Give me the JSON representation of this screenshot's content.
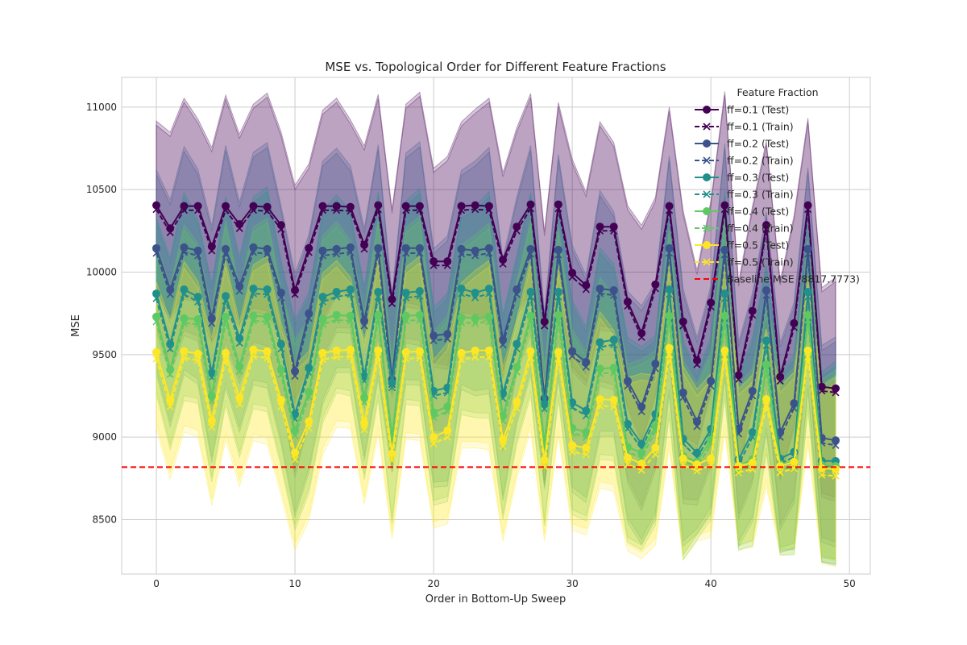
{
  "chart_data": {
    "type": "line",
    "title": "MSE vs. Topological Order for Different Feature Fractions",
    "xlabel": "Order in Bottom-Up Sweep",
    "ylabel": "MSE",
    "xlim": [
      -2.5,
      51.5
    ],
    "ylim": [
      8170,
      11180
    ],
    "x_ticks": [
      0,
      10,
      20,
      30,
      40,
      50
    ],
    "y_ticks": [
      8500,
      9000,
      9500,
      10000,
      10500,
      11000
    ],
    "grid": true,
    "legend": {
      "title": "Feature Fraction",
      "position": "top-right"
    },
    "baseline": {
      "label": "Baseline MSE (8817.7773)",
      "value": 8817.7773,
      "color": "#ff0000"
    },
    "series": [
      {
        "ff": "0.1",
        "color": "#440154",
        "test_label": "ff=0.1 (Test)",
        "train_label": "ff=0.1 (Train)",
        "test": [
          10405,
          10265,
          10400,
          10400,
          10155,
          10400,
          10290,
          10400,
          10395,
          10285,
          9890,
          10145,
          10400,
          10400,
          10395,
          10165,
          10405,
          9835,
          10400,
          10400,
          10065,
          10065,
          10400,
          10405,
          10400,
          10075,
          10275,
          10410,
          9700,
          10410,
          9995,
          9920,
          10275,
          10275,
          9820,
          9630,
          9925,
          10400,
          9700,
          9465,
          9815,
          10405,
          9375,
          9765,
          10285,
          9365,
          9690,
          10405,
          9305,
          9295
        ],
        "train_offset": -25,
        "band": 600
      },
      {
        "ff": "0.2",
        "color": "#3b528b",
        "test_label": "ff=0.2 (Test)",
        "train_label": "ff=0.2 (Train)",
        "test": [
          10145,
          9895,
          10150,
          10130,
          9720,
          10140,
          9915,
          10150,
          10140,
          9875,
          9400,
          9750,
          10130,
          10140,
          10150,
          9705,
          10145,
          9350,
          10145,
          10145,
          9615,
          9625,
          10140,
          10130,
          10145,
          9590,
          9895,
          10140,
          9235,
          10135,
          9520,
          9455,
          9900,
          9890,
          9340,
          9185,
          9445,
          10145,
          9270,
          9095,
          9340,
          10135,
          9050,
          9280,
          9890,
          9030,
          9205,
          10140,
          8995,
          8980
        ],
        "train_offset": -30,
        "band": 560
      },
      {
        "ff": "0.3",
        "color": "#21908d",
        "test_label": "ff=0.3 (Test)",
        "train_label": "ff=0.3 (Train)",
        "test": [
          9870,
          9565,
          9895,
          9850,
          9390,
          9855,
          9600,
          9900,
          9895,
          9565,
          9140,
          9420,
          9850,
          9880,
          9895,
          9370,
          9880,
          9330,
          9875,
          9885,
          9280,
          9300,
          9900,
          9875,
          9900,
          9265,
          9565,
          9880,
          9200,
          9880,
          9210,
          9160,
          9575,
          9590,
          9080,
          8960,
          9140,
          9895,
          8990,
          8905,
          9050,
          9870,
          8865,
          9030,
          9585,
          8870,
          8910,
          9880,
          8855,
          8855
        ],
        "train_offset": -30,
        "band": 540
      },
      {
        "ff": "0.4",
        "color": "#5ec962",
        "test_label": "ff=0.4 (Test)",
        "train_label": "ff=0.4 (Train)",
        "test": [
          9730,
          9410,
          9720,
          9715,
          9250,
          9730,
          9430,
          9735,
          9730,
          9410,
          9040,
          9275,
          9715,
          9740,
          9735,
          9240,
          9740,
          9000,
          9735,
          9740,
          9150,
          9185,
          9725,
          9720,
          9730,
          9130,
          9425,
          9735,
          8960,
          9740,
          9055,
          9030,
          9415,
          9420,
          8940,
          8905,
          9065,
          9735,
          8885,
          8850,
          8985,
          9735,
          8825,
          8865,
          9440,
          8835,
          8850,
          9740,
          8830,
          8825
        ],
        "train_offset": -30,
        "band": 520
      },
      {
        "ff": "0.5",
        "color": "#fde725",
        "test_label": "ff=0.5 (Test)",
        "train_label": "ff=0.5 (Train)",
        "test": [
          9515,
          9225,
          9520,
          9505,
          9100,
          9510,
          9240,
          9530,
          9520,
          9225,
          8905,
          9095,
          9510,
          9525,
          9530,
          9085,
          9525,
          8900,
          9515,
          9520,
          9000,
          9040,
          9510,
          9525,
          9525,
          8985,
          9215,
          9520,
          8860,
          9515,
          8950,
          8935,
          9230,
          9225,
          8875,
          8840,
          8935,
          9540,
          8870,
          8835,
          8870,
          9525,
          8825,
          8845,
          9230,
          8825,
          8850,
          9525,
          8810,
          8805
        ],
        "train_offset": -40,
        "band": 500
      }
    ]
  }
}
